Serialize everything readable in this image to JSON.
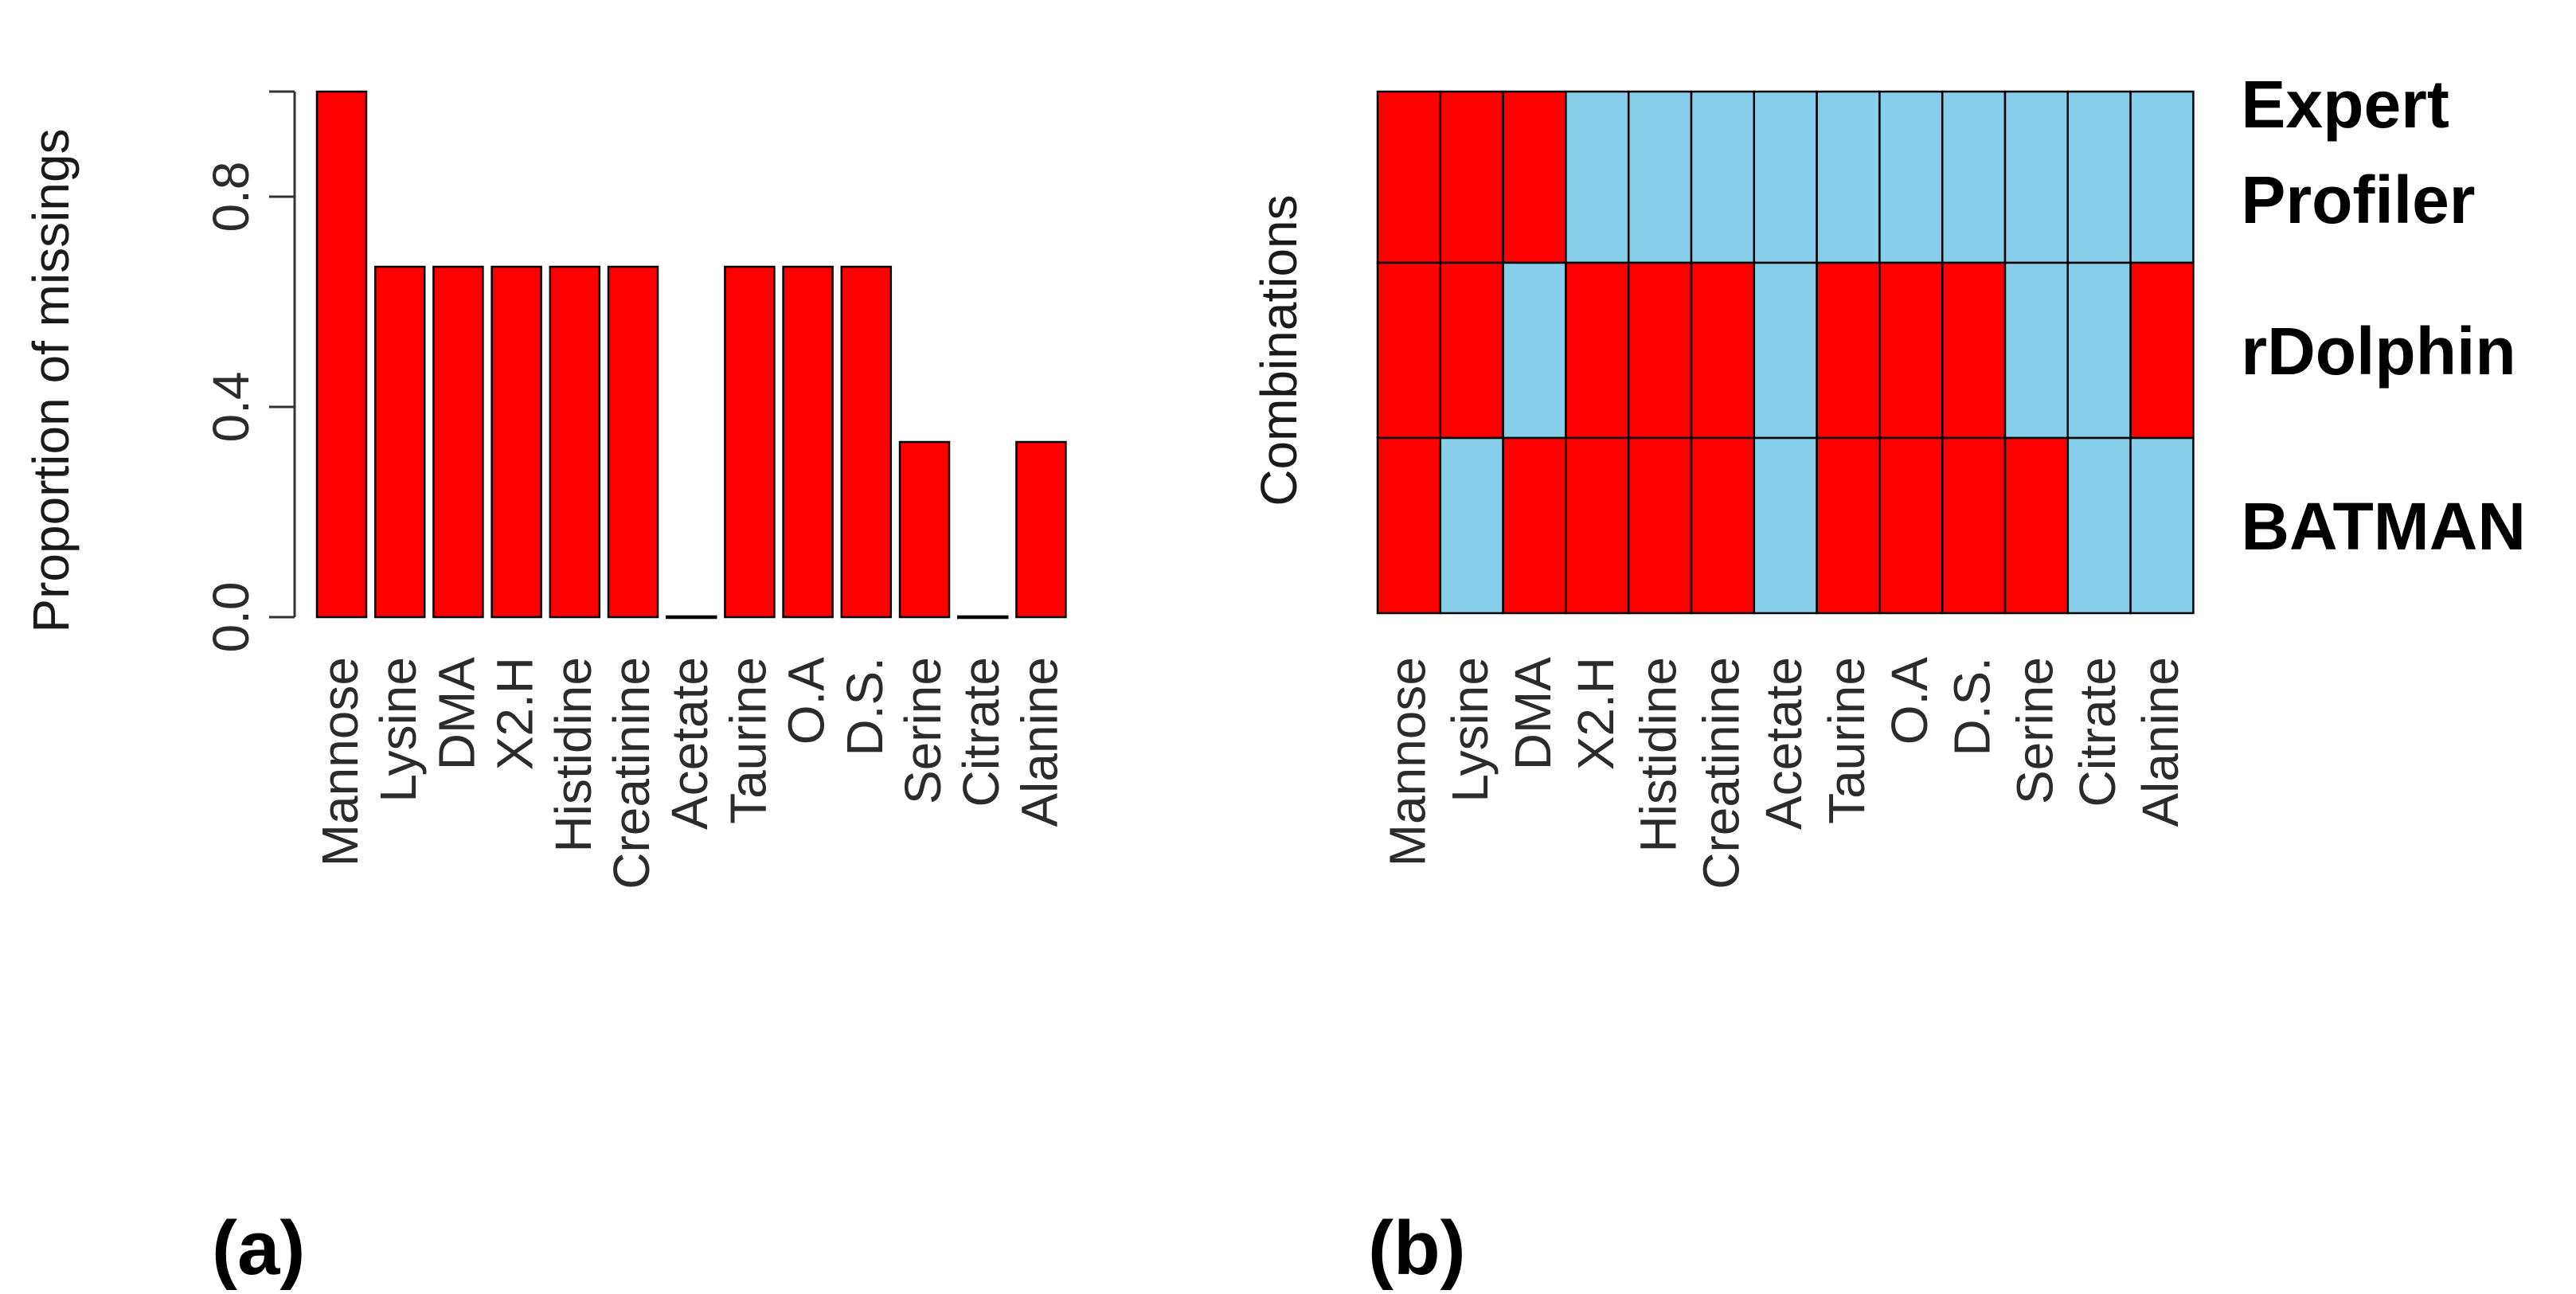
{
  "chart_data": [
    {
      "type": "bar",
      "panel_label": "(a)",
      "title": "",
      "xlabel": "",
      "ylabel": "Proportion of missings",
      "categories": [
        "Mannose",
        "Lysine",
        "DMA",
        "X2.H",
        "Histidine",
        "Creatinine",
        "Acetate",
        "Taurine",
        "O.A",
        "D.S.",
        "Serine",
        "Citrate",
        "Alanine"
      ],
      "values": [
        1.0,
        0.6667,
        0.6667,
        0.6667,
        0.6667,
        0.6667,
        0.0,
        0.6667,
        0.6667,
        0.6667,
        0.3333,
        0.0,
        0.3333
      ],
      "ylim": [
        0,
        1
      ],
      "yticks": [
        0.0,
        0.4,
        0.8
      ],
      "ytick_labels": [
        "0.0",
        "0.4",
        "0.8"
      ],
      "grid": false,
      "colors": {
        "bar": "#ff0000",
        "outline": "#000000"
      }
    },
    {
      "type": "heatmap",
      "panel_label": "(b)",
      "title": "",
      "ylabel": "Combinations",
      "columns": [
        "Mannose",
        "Lysine",
        "DMA",
        "X2.H",
        "Histidine",
        "Creatinine",
        "Acetate",
        "Taurine",
        "O.A",
        "D.S.",
        "Serine",
        "Citrate",
        "Alanine"
      ],
      "rows": [
        {
          "labels": [
            "Expert",
            "Profiler"
          ],
          "missing": [
            1,
            1,
            1,
            0,
            0,
            0,
            0,
            0,
            0,
            0,
            0,
            0,
            0
          ]
        },
        {
          "labels": [
            "rDolphin"
          ],
          "missing": [
            1,
            1,
            0,
            1,
            1,
            1,
            0,
            1,
            1,
            1,
            0,
            0,
            1
          ]
        },
        {
          "labels": [
            "BATMAN"
          ],
          "missing": [
            1,
            0,
            1,
            1,
            1,
            1,
            0,
            1,
            1,
            1,
            1,
            0,
            0
          ]
        }
      ],
      "colors": {
        "missing": "#ff0000",
        "present": "#87ceeb",
        "outline": "#000000"
      }
    }
  ]
}
